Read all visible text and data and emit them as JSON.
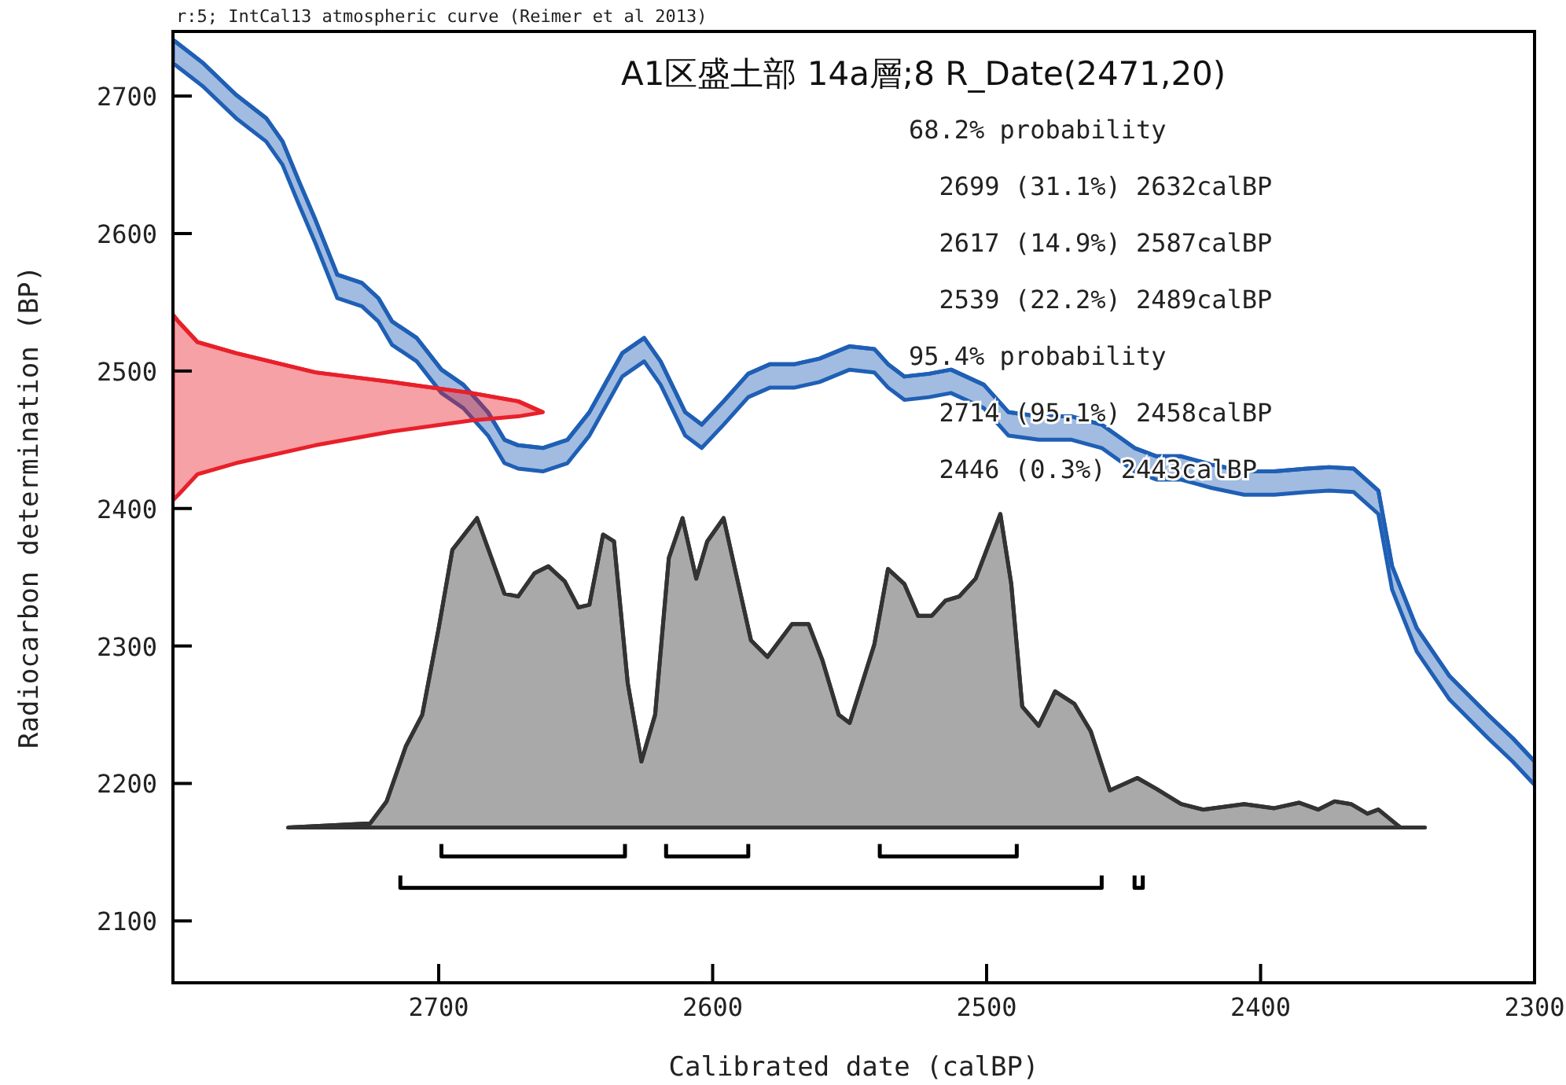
{
  "chart_data": {
    "type": "line",
    "title": "A1区盛土部 14a層;8 R_Date(2471,20)",
    "xlabel": "Calibrated date (calBP)",
    "ylabel": "Radiocarbon determination (BP)",
    "xlim": [
      2797,
      2300
    ],
    "ylim": [
      2055,
      2747
    ],
    "xticks": [
      2700,
      2600,
      2500,
      2400,
      2300
    ],
    "yticks": [
      2100,
      2200,
      2300,
      2400,
      2500,
      2600,
      2700
    ],
    "grid": false,
    "annotations": [
      "r:5; IntCal13 atmospheric curve (Reimer et al 2013)",
      "68.2% probability",
      "  2699 (31.1%) 2632calBP",
      "  2617 (14.9%) 2587calBP",
      "  2539 (22.2%) 2489calBP",
      "95.4% probability",
      "  2714 (95.1%) 2458calBP",
      "  2446 (0.3%) 2443calBP"
    ],
    "series": [
      {
        "color": "#1f5fb5",
        "x": [
          2797,
          2786,
          2774,
          2763,
          2757,
          2751,
          2745,
          2737,
          2728,
          2722,
          2717,
          2708,
          2699,
          2691,
          2682,
          2676,
          2671,
          2662,
          2653,
          2645,
          2633,
          2625,
          2619,
          2610,
          2604,
          2596,
          2587,
          2579,
          2570,
          2561,
          2550,
          2541,
          2536,
          2530,
          2521,
          2513,
          2501,
          2492,
          2481,
          2469,
          2458,
          2446,
          2438,
          2429,
          2418,
          2406,
          2395,
          2383,
          2375,
          2366,
          2357,
          2352,
          2343,
          2331,
          2317,
          2308,
          2300
        ],
        "values": [
          2741,
          2724,
          2701,
          2684,
          2667,
          2638,
          2610,
          2570,
          2564,
          2553,
          2536,
          2524,
          2501,
          2490,
          2470,
          2450,
          2446,
          2444,
          2450,
          2470,
          2513,
          2524,
          2507,
          2470,
          2461,
          2478,
          2498,
          2505,
          2505,
          2509,
          2518,
          2516,
          2505,
          2496,
          2498,
          2501,
          2490,
          2470,
          2467,
          2467,
          2461,
          2444,
          2438,
          2438,
          2432,
          2427,
          2427,
          2429,
          2430,
          2429,
          2413,
          2358,
          2313,
          2278,
          2250,
          2233,
          2216
        ],
        "upper": [
          2741,
          2724,
          2701,
          2684,
          2667,
          2638,
          2610,
          2570,
          2564,
          2553,
          2536,
          2524,
          2501,
          2490,
          2470,
          2450,
          2446,
          2444,
          2450,
          2470,
          2513,
          2524,
          2507,
          2470,
          2461,
          2478,
          2498,
          2505,
          2505,
          2509,
          2518,
          2516,
          2505,
          2496,
          2498,
          2501,
          2490,
          2470,
          2467,
          2467,
          2461,
          2444,
          2438,
          2438,
          2432,
          2427,
          2427,
          2429,
          2430,
          2429,
          2413,
          2358,
          2313,
          2278,
          2250,
          2233,
          2216
        ],
        "lower": [
          2724,
          2707,
          2684,
          2667,
          2650,
          2621,
          2593,
          2553,
          2547,
          2536,
          2519,
          2507,
          2484,
          2473,
          2453,
          2433,
          2429,
          2427,
          2433,
          2453,
          2496,
          2507,
          2490,
          2453,
          2444,
          2461,
          2481,
          2488,
          2488,
          2492,
          2501,
          2499,
          2488,
          2479,
          2481,
          2484,
          2473,
          2453,
          2450,
          2450,
          2444,
          2427,
          2421,
          2421,
          2415,
          2410,
          2410,
          2412,
          2413,
          2412,
          2396,
          2341,
          2296,
          2261,
          2233,
          2216,
          2199
        ]
      },
      {
        "color": "#e8202a",
        "x": [
          2797,
          2795,
          2788,
          2774,
          2745,
          2717,
          2688,
          2671,
          2662
        ],
        "values": [
          2541,
          2536,
          2521,
          2513,
          2499,
          2492,
          2484,
          2478,
          2470
        ],
        "upper": [
          2541,
          2536,
          2521,
          2513,
          2499,
          2492,
          2484,
          2478,
          2470
        ],
        "lower": [
          2406,
          2410,
          2425,
          2433,
          2446,
          2456,
          2464,
          2467,
          2470
        ]
      },
      {
        "color": "#333333",
        "x": [
          2755,
          2725,
          2719,
          2712,
          2706,
          2700,
          2695,
          2686,
          2676,
          2671,
          2665,
          2660,
          2654,
          2649,
          2645,
          2640,
          2636,
          2631,
          2626,
          2621,
          2616,
          2611,
          2606,
          2602,
          2596,
          2586,
          2580,
          2571,
          2565,
          2560,
          2554,
          2550,
          2541,
          2536,
          2530,
          2525,
          2520,
          2515,
          2510,
          2504,
          2495,
          2491,
          2487,
          2481,
          2475,
          2468,
          2462,
          2455,
          2445,
          2438,
          2429,
          2421,
          2406,
          2395,
          2386,
          2379,
          2373,
          2367,
          2361,
          2357,
          2349,
          2340
        ],
        "lower": [
          2168,
          2168,
          2168,
          2168,
          2168,
          2168,
          2168,
          2168,
          2168,
          2168,
          2168,
          2168,
          2168,
          2168,
          2168,
          2168,
          2168,
          2168,
          2168,
          2168,
          2168,
          2168,
          2168,
          2168,
          2168,
          2168,
          2168,
          2168,
          2168,
          2168,
          2168,
          2168,
          2168,
          2168,
          2168,
          2168,
          2168,
          2168,
          2168,
          2168,
          2168,
          2168,
          2168,
          2168,
          2168,
          2168,
          2168,
          2168,
          2168,
          2168,
          2168,
          2168,
          2168,
          2168,
          2168,
          2168,
          2168,
          2168,
          2168,
          2168,
          2168,
          2168
        ],
        "values": [
          2168,
          2171,
          2187,
          2227,
          2250,
          2313,
          2370,
          2393,
          2338,
          2336,
          2353,
          2358,
          2347,
          2328,
          2330,
          2381,
          2376,
          2273,
          2216,
          2250,
          2364,
          2393,
          2349,
          2376,
          2393,
          2304,
          2292,
          2316,
          2316,
          2290,
          2250,
          2244,
          2301,
          2356,
          2345,
          2322,
          2322,
          2333,
          2336,
          2349,
          2396,
          2345,
          2256,
          2242,
          2267,
          2258,
          2238,
          2195,
          2204,
          2196,
          2185,
          2181,
          2185,
          2182,
          2186,
          2181,
          2187,
          2185,
          2178,
          2181,
          2168,
          2168
        ],
        "upper": [
          2168,
          2171,
          2187,
          2227,
          2250,
          2313,
          2370,
          2393,
          2338,
          2336,
          2353,
          2358,
          2347,
          2328,
          2330,
          2381,
          2376,
          2273,
          2216,
          2250,
          2364,
          2393,
          2349,
          2376,
          2393,
          2304,
          2292,
          2316,
          2316,
          2290,
          2250,
          2244,
          2301,
          2356,
          2345,
          2322,
          2322,
          2333,
          2336,
          2349,
          2396,
          2345,
          2256,
          2242,
          2267,
          2258,
          2238,
          2195,
          2204,
          2196,
          2185,
          2181,
          2185,
          2182,
          2186,
          2181,
          2187,
          2185,
          2178,
          2181,
          2168,
          2168
        ]
      },
      {
        "color": "#000000",
        "x": [
          2699,
          2699,
          2632,
          2632,
          null,
          2617,
          2617,
          2587,
          2587,
          null,
          2539,
          2539,
          2489,
          2489,
          null,
          2714,
          2714,
          2458,
          2458,
          null,
          2446,
          2446,
          2443,
          2443
        ],
        "values": [
          2156,
          2147,
          2147,
          2156,
          null,
          2156,
          2147,
          2147,
          2156,
          null,
          2156,
          2147,
          2147,
          2156,
          null,
          2133,
          2124,
          2124,
          2133,
          null,
          2133,
          2124,
          2124,
          2133
        ]
      }
    ]
  }
}
